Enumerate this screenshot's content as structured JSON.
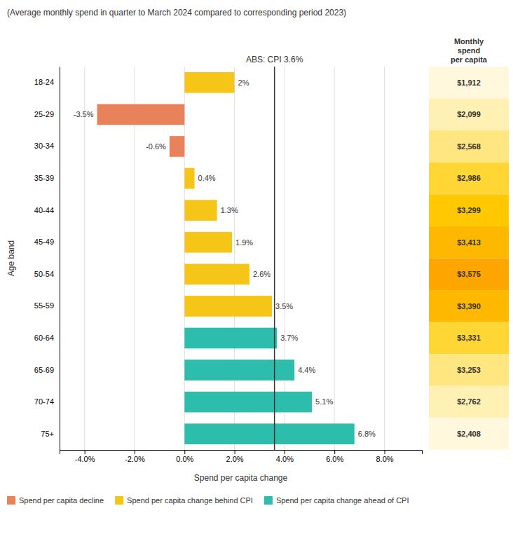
{
  "chart_data": {
    "type": "bar",
    "orientation": "horizontal",
    "title": "(Average monthly spend in quarter to March 2024 compared to corresponding period 2023)",
    "xlabel": "Spend per capita change",
    "ylabel": "Age band",
    "categories": [
      "18-24",
      "25-29",
      "30-34",
      "35-39",
      "40-44",
      "45-49",
      "50-54",
      "55-59",
      "60-64",
      "65-69",
      "70-74",
      "75+"
    ],
    "values": [
      2.0,
      -3.5,
      -0.6,
      0.4,
      1.3,
      1.9,
      2.6,
      3.5,
      3.7,
      4.4,
      5.1,
      6.8
    ],
    "value_labels": [
      "2%",
      "-3.5%",
      "-0.6%",
      "0.4%",
      "1.3%",
      "1.9%",
      "2.6%",
      "3.5%",
      "3.7%",
      "4.4%",
      "5.1%",
      "6.8%"
    ],
    "data_labels": true,
    "colors": [
      "#F5C518",
      "#E8825A",
      "#E8825A",
      "#F5C518",
      "#F5C518",
      "#F5C518",
      "#F5C518",
      "#F5C518",
      "#2DBDAD",
      "#2DBDAD",
      "#2DBDAD",
      "#2DBDAD"
    ],
    "xlim": [
      -5.0,
      9.5
    ],
    "xticks": [
      {
        "value": -4.0,
        "label": "-4.0%"
      },
      {
        "value": -2.0,
        "label": "-2.0%"
      },
      {
        "value": 0.0,
        "label": "0.0%"
      },
      {
        "value": 2.0,
        "label": "2.0%"
      },
      {
        "value": 4.0,
        "label": "4.0%"
      },
      {
        "value": 6.0,
        "label": "6.0%"
      },
      {
        "value": 8.0,
        "label": "8.0%"
      }
    ],
    "grid": true,
    "annotations": [
      {
        "text": "ABS: CPI 3.6%",
        "x": 3.6
      }
    ],
    "legend": "lower left",
    "legend_entries": [
      {
        "name": "Spend per capita decline",
        "color": "#E8825A"
      },
      {
        "name": "Spend per capita change behind CPI",
        "color": "#F5C518"
      },
      {
        "name": "Spend per capita change ahead of CPI",
        "color": "#2DBDAD"
      }
    ],
    "side_column": {
      "title": "Monthly\nspend\nper capita",
      "values": [
        1912,
        2099,
        2568,
        2986,
        3299,
        3413,
        3575,
        3390,
        3331,
        3253,
        2762,
        2408
      ],
      "value_labels": [
        "$1,912",
        "$2,099",
        "$2,568",
        "$2,986",
        "$3,299",
        "$3,413",
        "$3,575",
        "$3,390",
        "$3,331",
        "$3,253",
        "$2,762",
        "$2,408"
      ],
      "colors": [
        "#FFF8DC",
        "#FFF0B3",
        "#FFE680",
        "#FFD633",
        "#FFC800",
        "#FFB800",
        "#FFA500",
        "#FFB800",
        "#FFD633",
        "#FFE680",
        "#FFF0B3",
        "#FFF8DC"
      ]
    }
  }
}
